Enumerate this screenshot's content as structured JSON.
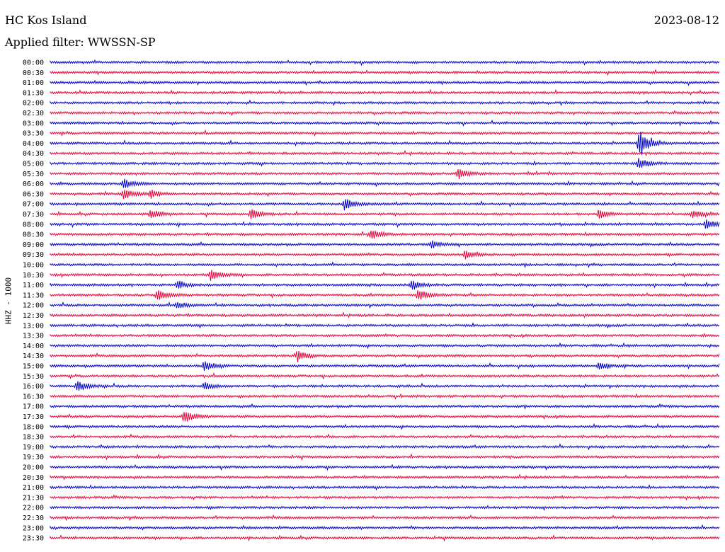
{
  "header": {
    "station": "HC Kos Island",
    "filter": "Applied filter: WWSSN-SP",
    "date": "2023-08-12",
    "channel": "HHZ - 1000"
  },
  "colors": {
    "trace_a": "#0000cc",
    "trace_b": "#e8003a"
  },
  "chart_data": {
    "type": "helicorder",
    "title": "HC Kos Island",
    "subtitle": "Applied filter: WWSSN-SP",
    "ylabel": "HHZ - 1000",
    "row_labels": [
      "00:00",
      "00:30",
      "01:00",
      "01:30",
      "02:00",
      "02:30",
      "03:00",
      "03:30",
      "04:00",
      "04:30",
      "05:00",
      "05:30",
      "06:00",
      "06:30",
      "07:00",
      "07:30",
      "08:00",
      "08:30",
      "09:00",
      "09:30",
      "10:00",
      "10:30",
      "11:00",
      "11:30",
      "12:00",
      "12:30",
      "13:00",
      "13:30",
      "14:00",
      "14:30",
      "15:00",
      "15:30",
      "16:00",
      "16:30",
      "17:00",
      "17:30",
      "18:00",
      "18:30",
      "19:00",
      "19:30",
      "20:00",
      "20:30",
      "21:00",
      "21:30",
      "22:00",
      "22:30",
      "23:00",
      "23:30"
    ],
    "row_colors_cycle": [
      "#0000cc",
      "#e8003a"
    ],
    "events": [
      {
        "row": "04:00",
        "pos": 0.88,
        "amplitude": 22
      },
      {
        "row": "05:00",
        "pos": 0.88,
        "amplitude": 8
      },
      {
        "row": "05:30",
        "pos": 0.61,
        "amplitude": 8
      },
      {
        "row": "06:00",
        "pos": 0.11,
        "amplitude": 7
      },
      {
        "row": "06:30",
        "pos": 0.11,
        "amplitude": 8
      },
      {
        "row": "06:30",
        "pos": 0.15,
        "amplitude": 6
      },
      {
        "row": "07:00",
        "pos": 0.44,
        "amplitude": 9
      },
      {
        "row": "07:30",
        "pos": 0.15,
        "amplitude": 8
      },
      {
        "row": "07:30",
        "pos": 0.3,
        "amplitude": 7
      },
      {
        "row": "07:30",
        "pos": 0.82,
        "amplitude": 7
      },
      {
        "row": "07:30",
        "pos": 0.96,
        "amplitude": 6
      },
      {
        "row": "08:00",
        "pos": 0.98,
        "amplitude": 7
      },
      {
        "row": "08:30",
        "pos": 0.48,
        "amplitude": 7
      },
      {
        "row": "09:00",
        "pos": 0.57,
        "amplitude": 6
      },
      {
        "row": "09:30",
        "pos": 0.62,
        "amplitude": 6
      },
      {
        "row": "10:30",
        "pos": 0.24,
        "amplitude": 8
      },
      {
        "row": "11:00",
        "pos": 0.19,
        "amplitude": 6
      },
      {
        "row": "11:00",
        "pos": 0.54,
        "amplitude": 7
      },
      {
        "row": "11:30",
        "pos": 0.16,
        "amplitude": 9
      },
      {
        "row": "11:30",
        "pos": 0.55,
        "amplitude": 9
      },
      {
        "row": "12:00",
        "pos": 0.19,
        "amplitude": 5
      },
      {
        "row": "14:30",
        "pos": 0.37,
        "amplitude": 9
      },
      {
        "row": "15:00",
        "pos": 0.23,
        "amplitude": 8
      },
      {
        "row": "15:00",
        "pos": 0.82,
        "amplitude": 6
      },
      {
        "row": "16:00",
        "pos": 0.04,
        "amplitude": 7
      },
      {
        "row": "16:00",
        "pos": 0.23,
        "amplitude": 5
      },
      {
        "row": "17:30",
        "pos": 0.2,
        "amplitude": 9
      }
    ]
  }
}
